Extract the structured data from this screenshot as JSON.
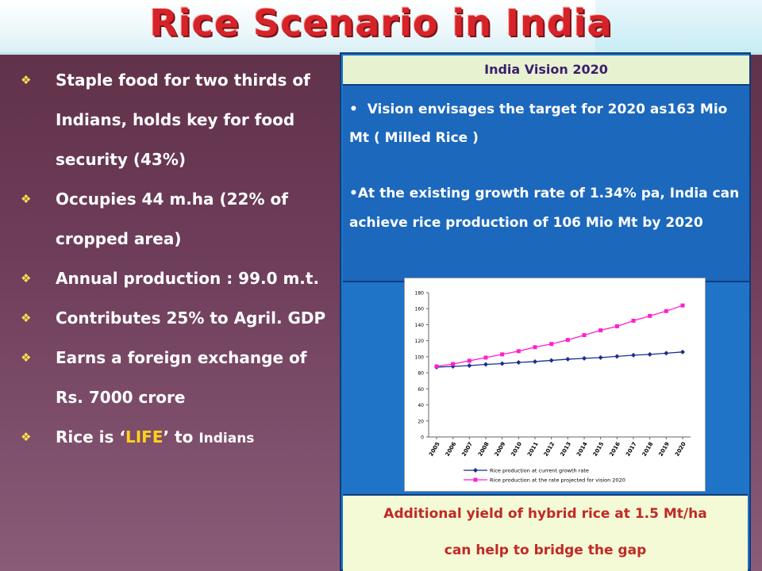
{
  "title": "Rice Scenario in India",
  "left_bullets": [
    {
      "text": " Staple food for two thirds of Indians, holds key for food security (43%)"
    },
    {
      "text": "Occupies 44 m.ha (22% of cropped area)"
    },
    {
      "text": "Annual production : 99.0 m.t."
    },
    {
      "text": "Contributes 25% to Agril. GDP"
    },
    {
      "text": "Earns a foreign exchange of Rs. 7000 crore"
    }
  ],
  "last_bullet": {
    "prefix": "Rice is ‘",
    "highlight": "LIFE",
    "suffix": "’ to ",
    "small": "Indians"
  },
  "bullet_icon": "diamond-bullet-icon",
  "vision": {
    "heading": "India Vision 2020",
    "point1": "Vision envisages the target for 2020 as163 Mio Mt ( Milled Rice )",
    "point2": "At the existing growth rate of 1.34% pa, India can achieve rice production of 106 Mio Mt by 2020"
  },
  "footer": {
    "line1": "Additional yield of hybrid rice at 1.5 Mt/ha",
    "line2": "can help to bridge the gap"
  },
  "colors": {
    "title": "#d6232a",
    "life": "#ffd21a",
    "panel": "#1f74c8",
    "footer_text": "#c02a25"
  },
  "chart_data": {
    "type": "line",
    "x": [
      "2005",
      "2006",
      "2007",
      "2008",
      "2009",
      "2010",
      "2011",
      "2012",
      "2013",
      "2014",
      "2015",
      "2016",
      "2017",
      "2018",
      "2019",
      "2020"
    ],
    "ylim": [
      0,
      180
    ],
    "yticks": [
      0,
      20,
      40,
      60,
      80,
      100,
      120,
      140,
      160,
      180
    ],
    "series": [
      {
        "name": "Rice production at current growth rate",
        "color": "#1a2f8c",
        "marker": "diamond",
        "values": [
          87,
          88,
          89,
          90.5,
          91.5,
          93,
          94,
          95.5,
          97,
          98,
          99,
          100.5,
          102,
          103,
          104.5,
          106
        ]
      },
      {
        "name": "Rice production at the rate projected for vision 2020",
        "color": "#ff1fd0",
        "marker": "square",
        "values": [
          88,
          91,
          95,
          99,
          103,
          107,
          112,
          116,
          121,
          127,
          133,
          138,
          145,
          151,
          157,
          164
        ]
      }
    ],
    "legend_position": "bottom"
  }
}
